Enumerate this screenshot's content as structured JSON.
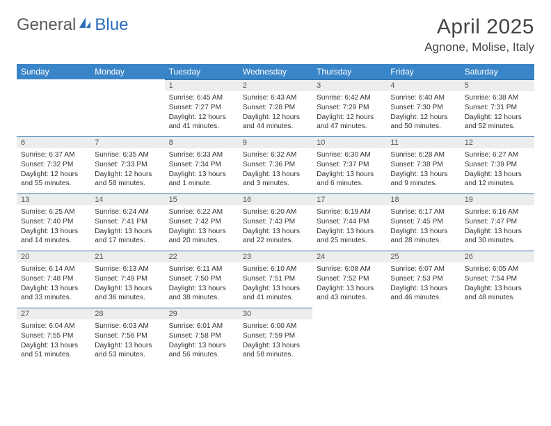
{
  "logo": {
    "text1": "General",
    "text2": "Blue"
  },
  "header": {
    "month_title": "April 2025",
    "location": "Agnone, Molise, Italy"
  },
  "colors": {
    "header_bg": "#3a85c8",
    "header_text": "#ffffff",
    "daynum_bg": "#eceeee",
    "row_border": "#2f6fa8"
  },
  "weekdays": [
    "Sunday",
    "Monday",
    "Tuesday",
    "Wednesday",
    "Thursday",
    "Friday",
    "Saturday"
  ],
  "weeks": [
    [
      null,
      null,
      {
        "n": "1",
        "sr": "Sunrise: 6:45 AM",
        "ss": "Sunset: 7:27 PM",
        "dl": "Daylight: 12 hours and 41 minutes."
      },
      {
        "n": "2",
        "sr": "Sunrise: 6:43 AM",
        "ss": "Sunset: 7:28 PM",
        "dl": "Daylight: 12 hours and 44 minutes."
      },
      {
        "n": "3",
        "sr": "Sunrise: 6:42 AM",
        "ss": "Sunset: 7:29 PM",
        "dl": "Daylight: 12 hours and 47 minutes."
      },
      {
        "n": "4",
        "sr": "Sunrise: 6:40 AM",
        "ss": "Sunset: 7:30 PM",
        "dl": "Daylight: 12 hours and 50 minutes."
      },
      {
        "n": "5",
        "sr": "Sunrise: 6:38 AM",
        "ss": "Sunset: 7:31 PM",
        "dl": "Daylight: 12 hours and 52 minutes."
      }
    ],
    [
      {
        "n": "6",
        "sr": "Sunrise: 6:37 AM",
        "ss": "Sunset: 7:32 PM",
        "dl": "Daylight: 12 hours and 55 minutes."
      },
      {
        "n": "7",
        "sr": "Sunrise: 6:35 AM",
        "ss": "Sunset: 7:33 PM",
        "dl": "Daylight: 12 hours and 58 minutes."
      },
      {
        "n": "8",
        "sr": "Sunrise: 6:33 AM",
        "ss": "Sunset: 7:34 PM",
        "dl": "Daylight: 13 hours and 1 minute."
      },
      {
        "n": "9",
        "sr": "Sunrise: 6:32 AM",
        "ss": "Sunset: 7:36 PM",
        "dl": "Daylight: 13 hours and 3 minutes."
      },
      {
        "n": "10",
        "sr": "Sunrise: 6:30 AM",
        "ss": "Sunset: 7:37 PM",
        "dl": "Daylight: 13 hours and 6 minutes."
      },
      {
        "n": "11",
        "sr": "Sunrise: 6:28 AM",
        "ss": "Sunset: 7:38 PM",
        "dl": "Daylight: 13 hours and 9 minutes."
      },
      {
        "n": "12",
        "sr": "Sunrise: 6:27 AM",
        "ss": "Sunset: 7:39 PM",
        "dl": "Daylight: 13 hours and 12 minutes."
      }
    ],
    [
      {
        "n": "13",
        "sr": "Sunrise: 6:25 AM",
        "ss": "Sunset: 7:40 PM",
        "dl": "Daylight: 13 hours and 14 minutes."
      },
      {
        "n": "14",
        "sr": "Sunrise: 6:24 AM",
        "ss": "Sunset: 7:41 PM",
        "dl": "Daylight: 13 hours and 17 minutes."
      },
      {
        "n": "15",
        "sr": "Sunrise: 6:22 AM",
        "ss": "Sunset: 7:42 PM",
        "dl": "Daylight: 13 hours and 20 minutes."
      },
      {
        "n": "16",
        "sr": "Sunrise: 6:20 AM",
        "ss": "Sunset: 7:43 PM",
        "dl": "Daylight: 13 hours and 22 minutes."
      },
      {
        "n": "17",
        "sr": "Sunrise: 6:19 AM",
        "ss": "Sunset: 7:44 PM",
        "dl": "Daylight: 13 hours and 25 minutes."
      },
      {
        "n": "18",
        "sr": "Sunrise: 6:17 AM",
        "ss": "Sunset: 7:45 PM",
        "dl": "Daylight: 13 hours and 28 minutes."
      },
      {
        "n": "19",
        "sr": "Sunrise: 6:16 AM",
        "ss": "Sunset: 7:47 PM",
        "dl": "Daylight: 13 hours and 30 minutes."
      }
    ],
    [
      {
        "n": "20",
        "sr": "Sunrise: 6:14 AM",
        "ss": "Sunset: 7:48 PM",
        "dl": "Daylight: 13 hours and 33 minutes."
      },
      {
        "n": "21",
        "sr": "Sunrise: 6:13 AM",
        "ss": "Sunset: 7:49 PM",
        "dl": "Daylight: 13 hours and 36 minutes."
      },
      {
        "n": "22",
        "sr": "Sunrise: 6:11 AM",
        "ss": "Sunset: 7:50 PM",
        "dl": "Daylight: 13 hours and 38 minutes."
      },
      {
        "n": "23",
        "sr": "Sunrise: 6:10 AM",
        "ss": "Sunset: 7:51 PM",
        "dl": "Daylight: 13 hours and 41 minutes."
      },
      {
        "n": "24",
        "sr": "Sunrise: 6:08 AM",
        "ss": "Sunset: 7:52 PM",
        "dl": "Daylight: 13 hours and 43 minutes."
      },
      {
        "n": "25",
        "sr": "Sunrise: 6:07 AM",
        "ss": "Sunset: 7:53 PM",
        "dl": "Daylight: 13 hours and 46 minutes."
      },
      {
        "n": "26",
        "sr": "Sunrise: 6:05 AM",
        "ss": "Sunset: 7:54 PM",
        "dl": "Daylight: 13 hours and 48 minutes."
      }
    ],
    [
      {
        "n": "27",
        "sr": "Sunrise: 6:04 AM",
        "ss": "Sunset: 7:55 PM",
        "dl": "Daylight: 13 hours and 51 minutes."
      },
      {
        "n": "28",
        "sr": "Sunrise: 6:03 AM",
        "ss": "Sunset: 7:56 PM",
        "dl": "Daylight: 13 hours and 53 minutes."
      },
      {
        "n": "29",
        "sr": "Sunrise: 6:01 AM",
        "ss": "Sunset: 7:58 PM",
        "dl": "Daylight: 13 hours and 56 minutes."
      },
      {
        "n": "30",
        "sr": "Sunrise: 6:00 AM",
        "ss": "Sunset: 7:59 PM",
        "dl": "Daylight: 13 hours and 58 minutes."
      },
      null,
      null,
      null
    ]
  ]
}
